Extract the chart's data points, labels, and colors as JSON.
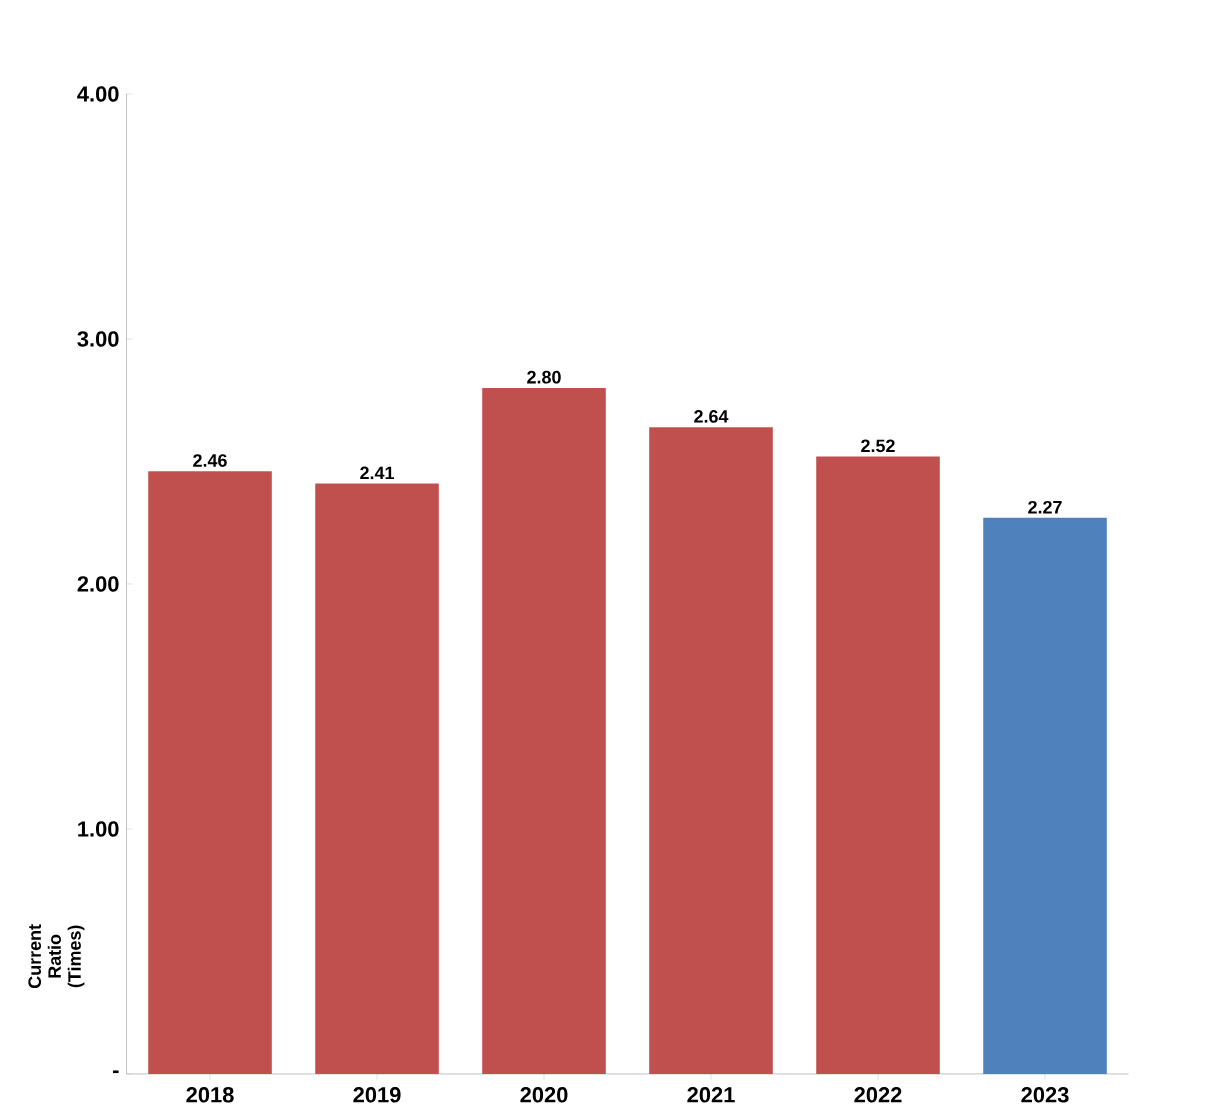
{
  "chart_data": {
    "type": "bar",
    "ylabel": "Current Ratio (Times)",
    "categories": [
      "2018",
      "2019",
      "2020",
      "2021",
      "2022",
      "2023"
    ],
    "values": [
      2.46,
      2.41,
      2.8,
      2.64,
      2.52,
      2.27
    ],
    "value_labels": [
      "2.46",
      "2.41",
      "2.80",
      "2.64",
      "2.52",
      "2.27"
    ],
    "colors": [
      "#c0504d",
      "#c0504d",
      "#c0504d",
      "#c0504d",
      "#c0504d",
      "#4f81bd"
    ],
    "ylim": [
      0,
      4
    ],
    "yticks": [
      {
        "value": 0,
        "label": "-"
      },
      {
        "value": 1,
        "label": "1.00"
      },
      {
        "value": 2,
        "label": "2.00"
      },
      {
        "value": 3,
        "label": "3.00"
      },
      {
        "value": 4,
        "label": "4.00"
      }
    ]
  }
}
